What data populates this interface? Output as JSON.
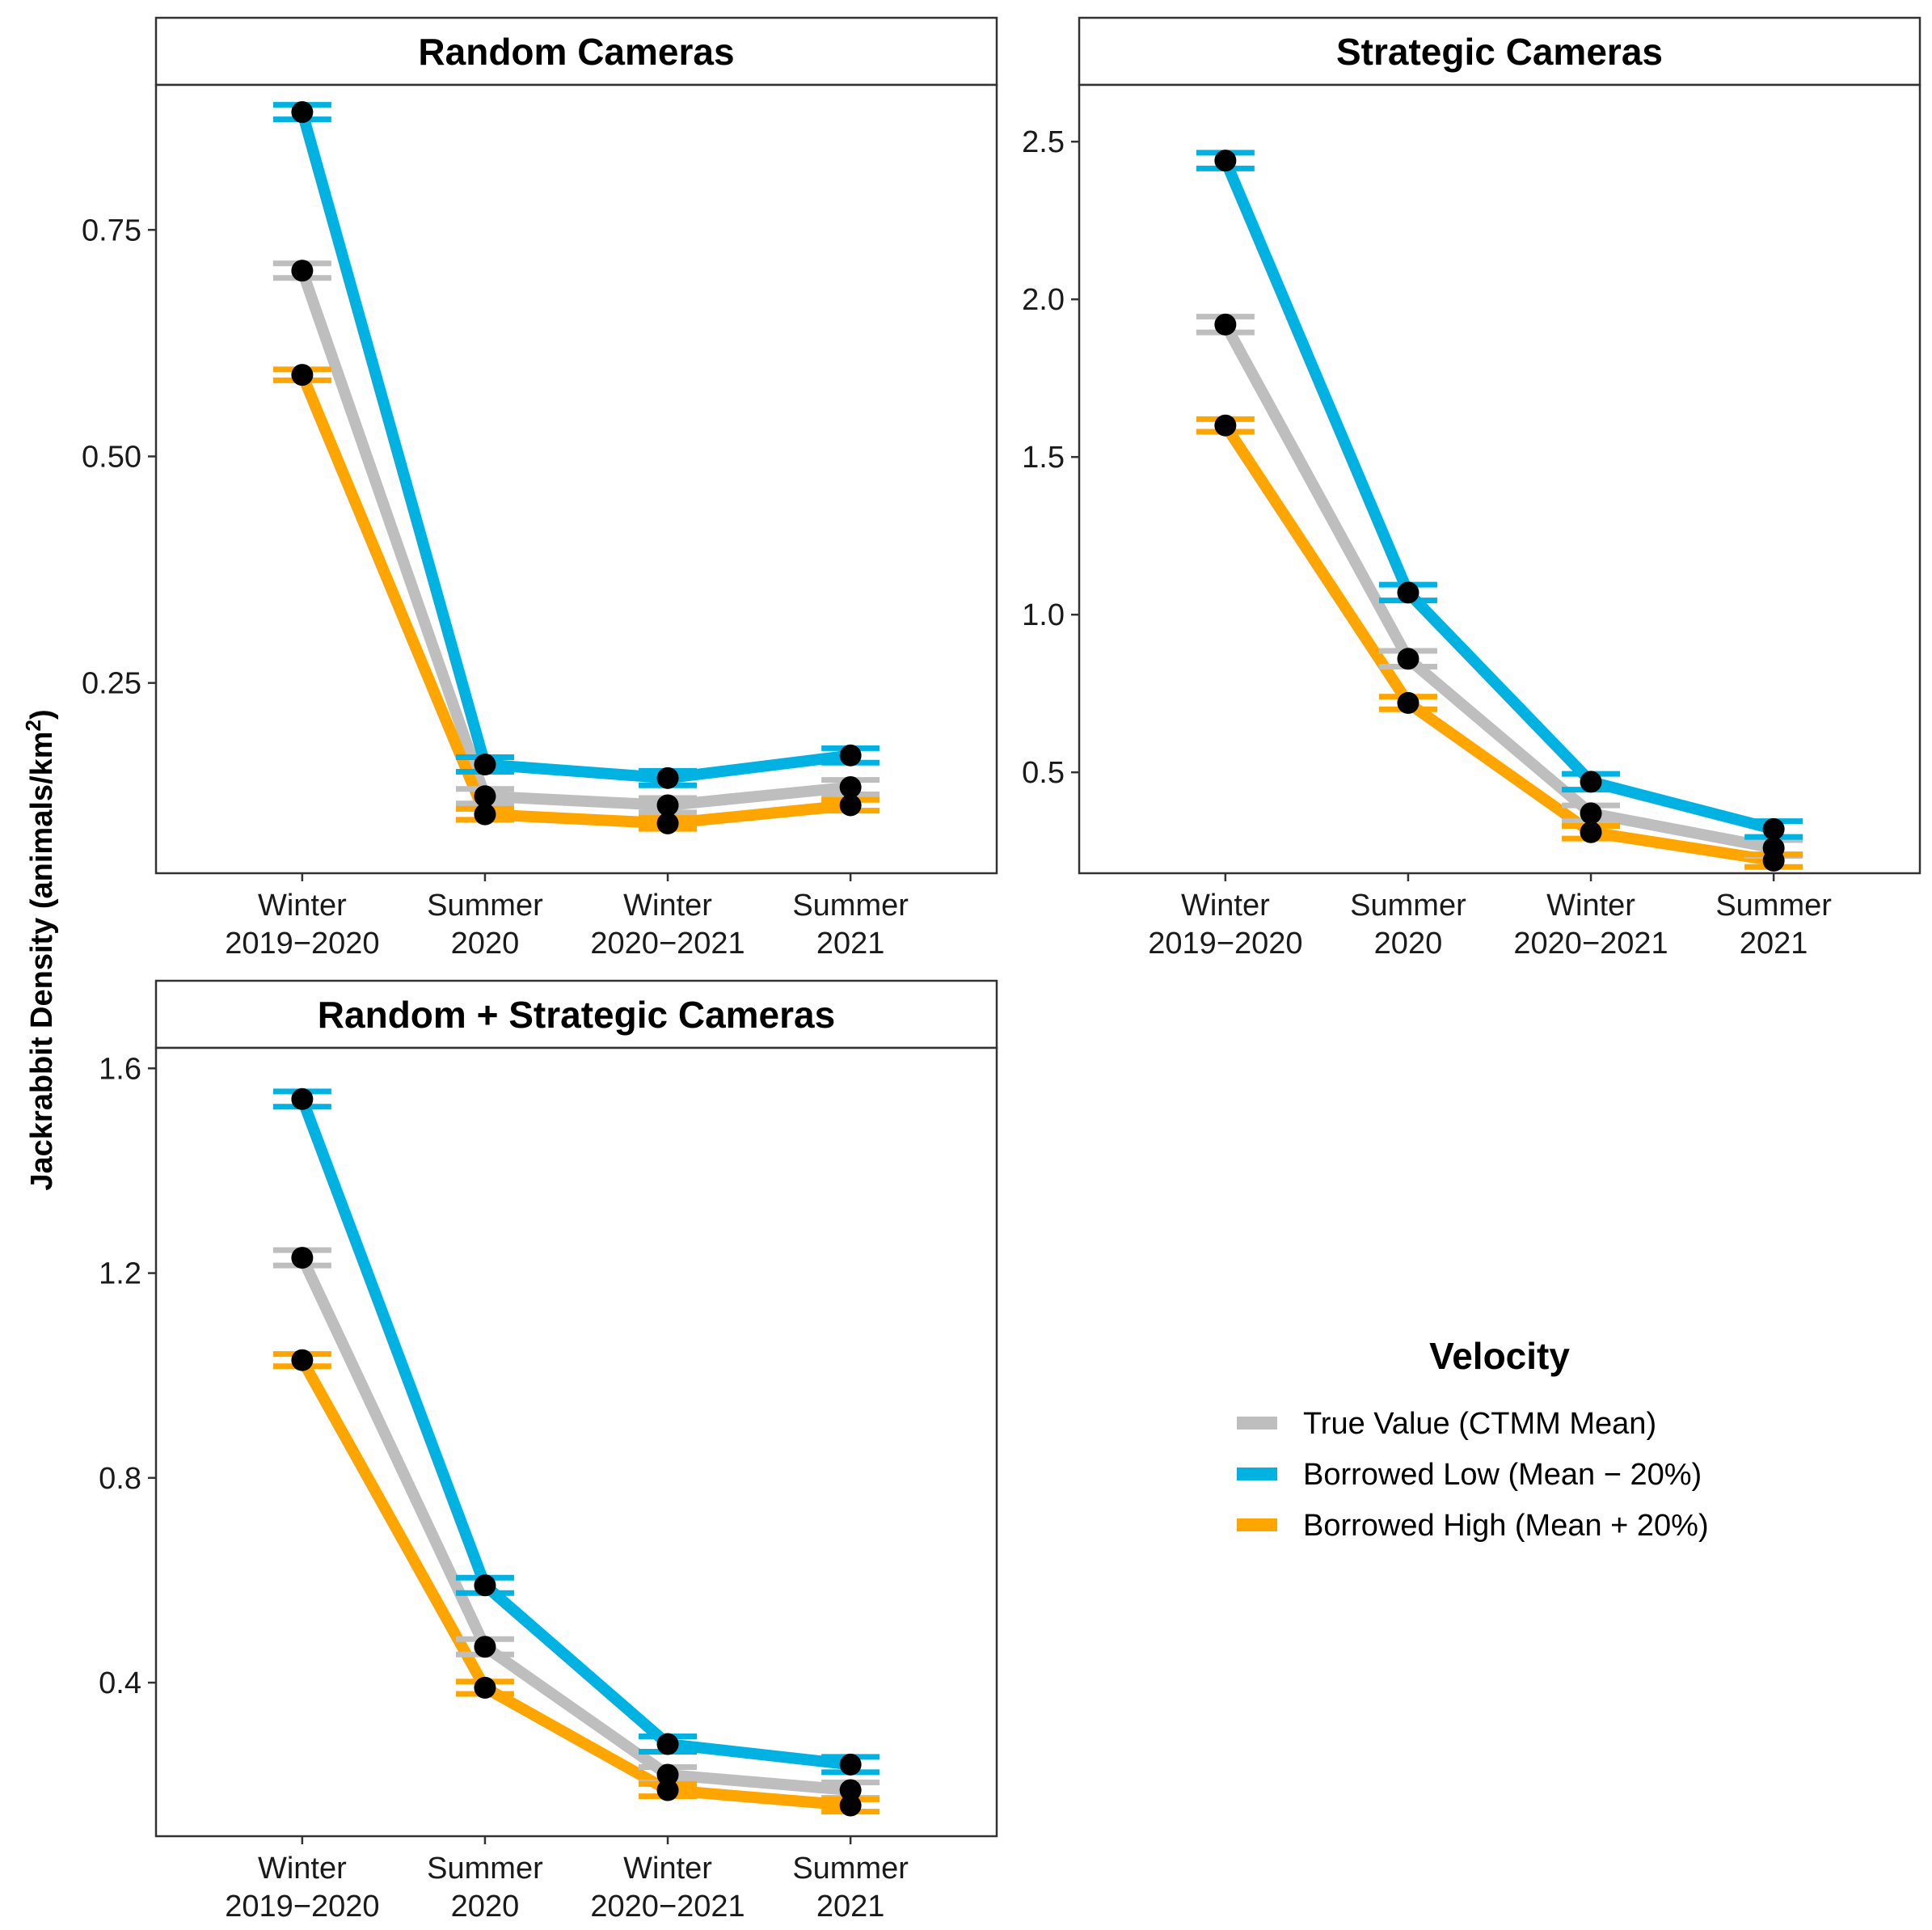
{
  "figure": {
    "ylabel_main": "Jackrabbit Density (animals/km",
    "ylabel_sup": "2",
    "ylabel_close": ")"
  },
  "legend": {
    "title": "Velocity",
    "entries": [
      {
        "key": "true",
        "label": "True Value (CTMM Mean)",
        "color": "#bebebe"
      },
      {
        "key": "low",
        "label": "Borrowed Low (Mean − 20%)",
        "color": "#00b2e2"
      },
      {
        "key": "high",
        "label": "Borrowed High (Mean + 20%)",
        "color": "#ffa500"
      }
    ]
  },
  "chart_data": [
    {
      "type": "line",
      "title": "Random Cameras",
      "categories": [
        "Winter\n2019−2020",
        "Summer\n2020",
        "Winter\n2020−2021",
        "Summer\n2021"
      ],
      "ylim": [
        0.04,
        0.91
      ],
      "yticks": [
        0.25,
        0.5,
        0.75
      ],
      "ytick_labels": [
        "0.25",
        "0.50",
        "0.75"
      ],
      "series": [
        {
          "key": "true",
          "name": "True Value (CTMM Mean)",
          "values": [
            0.705,
            0.125,
            0.115,
            0.135
          ],
          "err": 0.008
        },
        {
          "key": "low",
          "name": "Borrowed Low (Mean − 20%)",
          "values": [
            0.88,
            0.16,
            0.145,
            0.17
          ],
          "err": 0.008
        },
        {
          "key": "high",
          "name": "Borrowed High (Mean + 20%)",
          "values": [
            0.59,
            0.105,
            0.095,
            0.115
          ],
          "err": 0.006
        }
      ]
    },
    {
      "type": "line",
      "title": "Strategic Cameras",
      "categories": [
        "Winter\n2019−2020",
        "Summer\n2020",
        "Winter\n2020−2021",
        "Summer\n2021"
      ],
      "ylim": [
        0.18,
        2.68
      ],
      "yticks": [
        0.5,
        1.0,
        1.5,
        2.0,
        2.5
      ],
      "ytick_labels": [
        "0.5",
        "1.0",
        "1.5",
        "2.0",
        "2.5"
      ],
      "series": [
        {
          "key": "true",
          "name": "True Value (CTMM Mean)",
          "values": [
            1.92,
            0.86,
            0.37,
            0.26
          ],
          "err": 0.025
        },
        {
          "key": "low",
          "name": "Borrowed Low (Mean − 20%)",
          "values": [
            2.44,
            1.07,
            0.47,
            0.32
          ],
          "err": 0.025
        },
        {
          "key": "high",
          "name": "Borrowed High (Mean + 20%)",
          "values": [
            1.6,
            0.72,
            0.31,
            0.22
          ],
          "err": 0.02
        }
      ]
    },
    {
      "type": "line",
      "title": "Random + Strategic Cameras",
      "categories": [
        "Winter\n2019−2020",
        "Summer\n2020",
        "Winter\n2020−2021",
        "Summer\n2021"
      ],
      "ylim": [
        0.1,
        1.64
      ],
      "yticks": [
        0.4,
        0.8,
        1.2,
        1.6
      ],
      "ytick_labels": [
        "0.4",
        "0.8",
        "1.2",
        "1.6"
      ],
      "series": [
        {
          "key": "true",
          "name": "True Value (CTMM Mean)",
          "values": [
            1.23,
            0.47,
            0.22,
            0.19
          ],
          "err": 0.015
        },
        {
          "key": "low",
          "name": "Borrowed Low (Mean − 20%)",
          "values": [
            1.54,
            0.59,
            0.28,
            0.24
          ],
          "err": 0.015
        },
        {
          "key": "high",
          "name": "Borrowed High (Mean + 20%)",
          "values": [
            1.03,
            0.39,
            0.19,
            0.16
          ],
          "err": 0.012
        }
      ]
    }
  ]
}
